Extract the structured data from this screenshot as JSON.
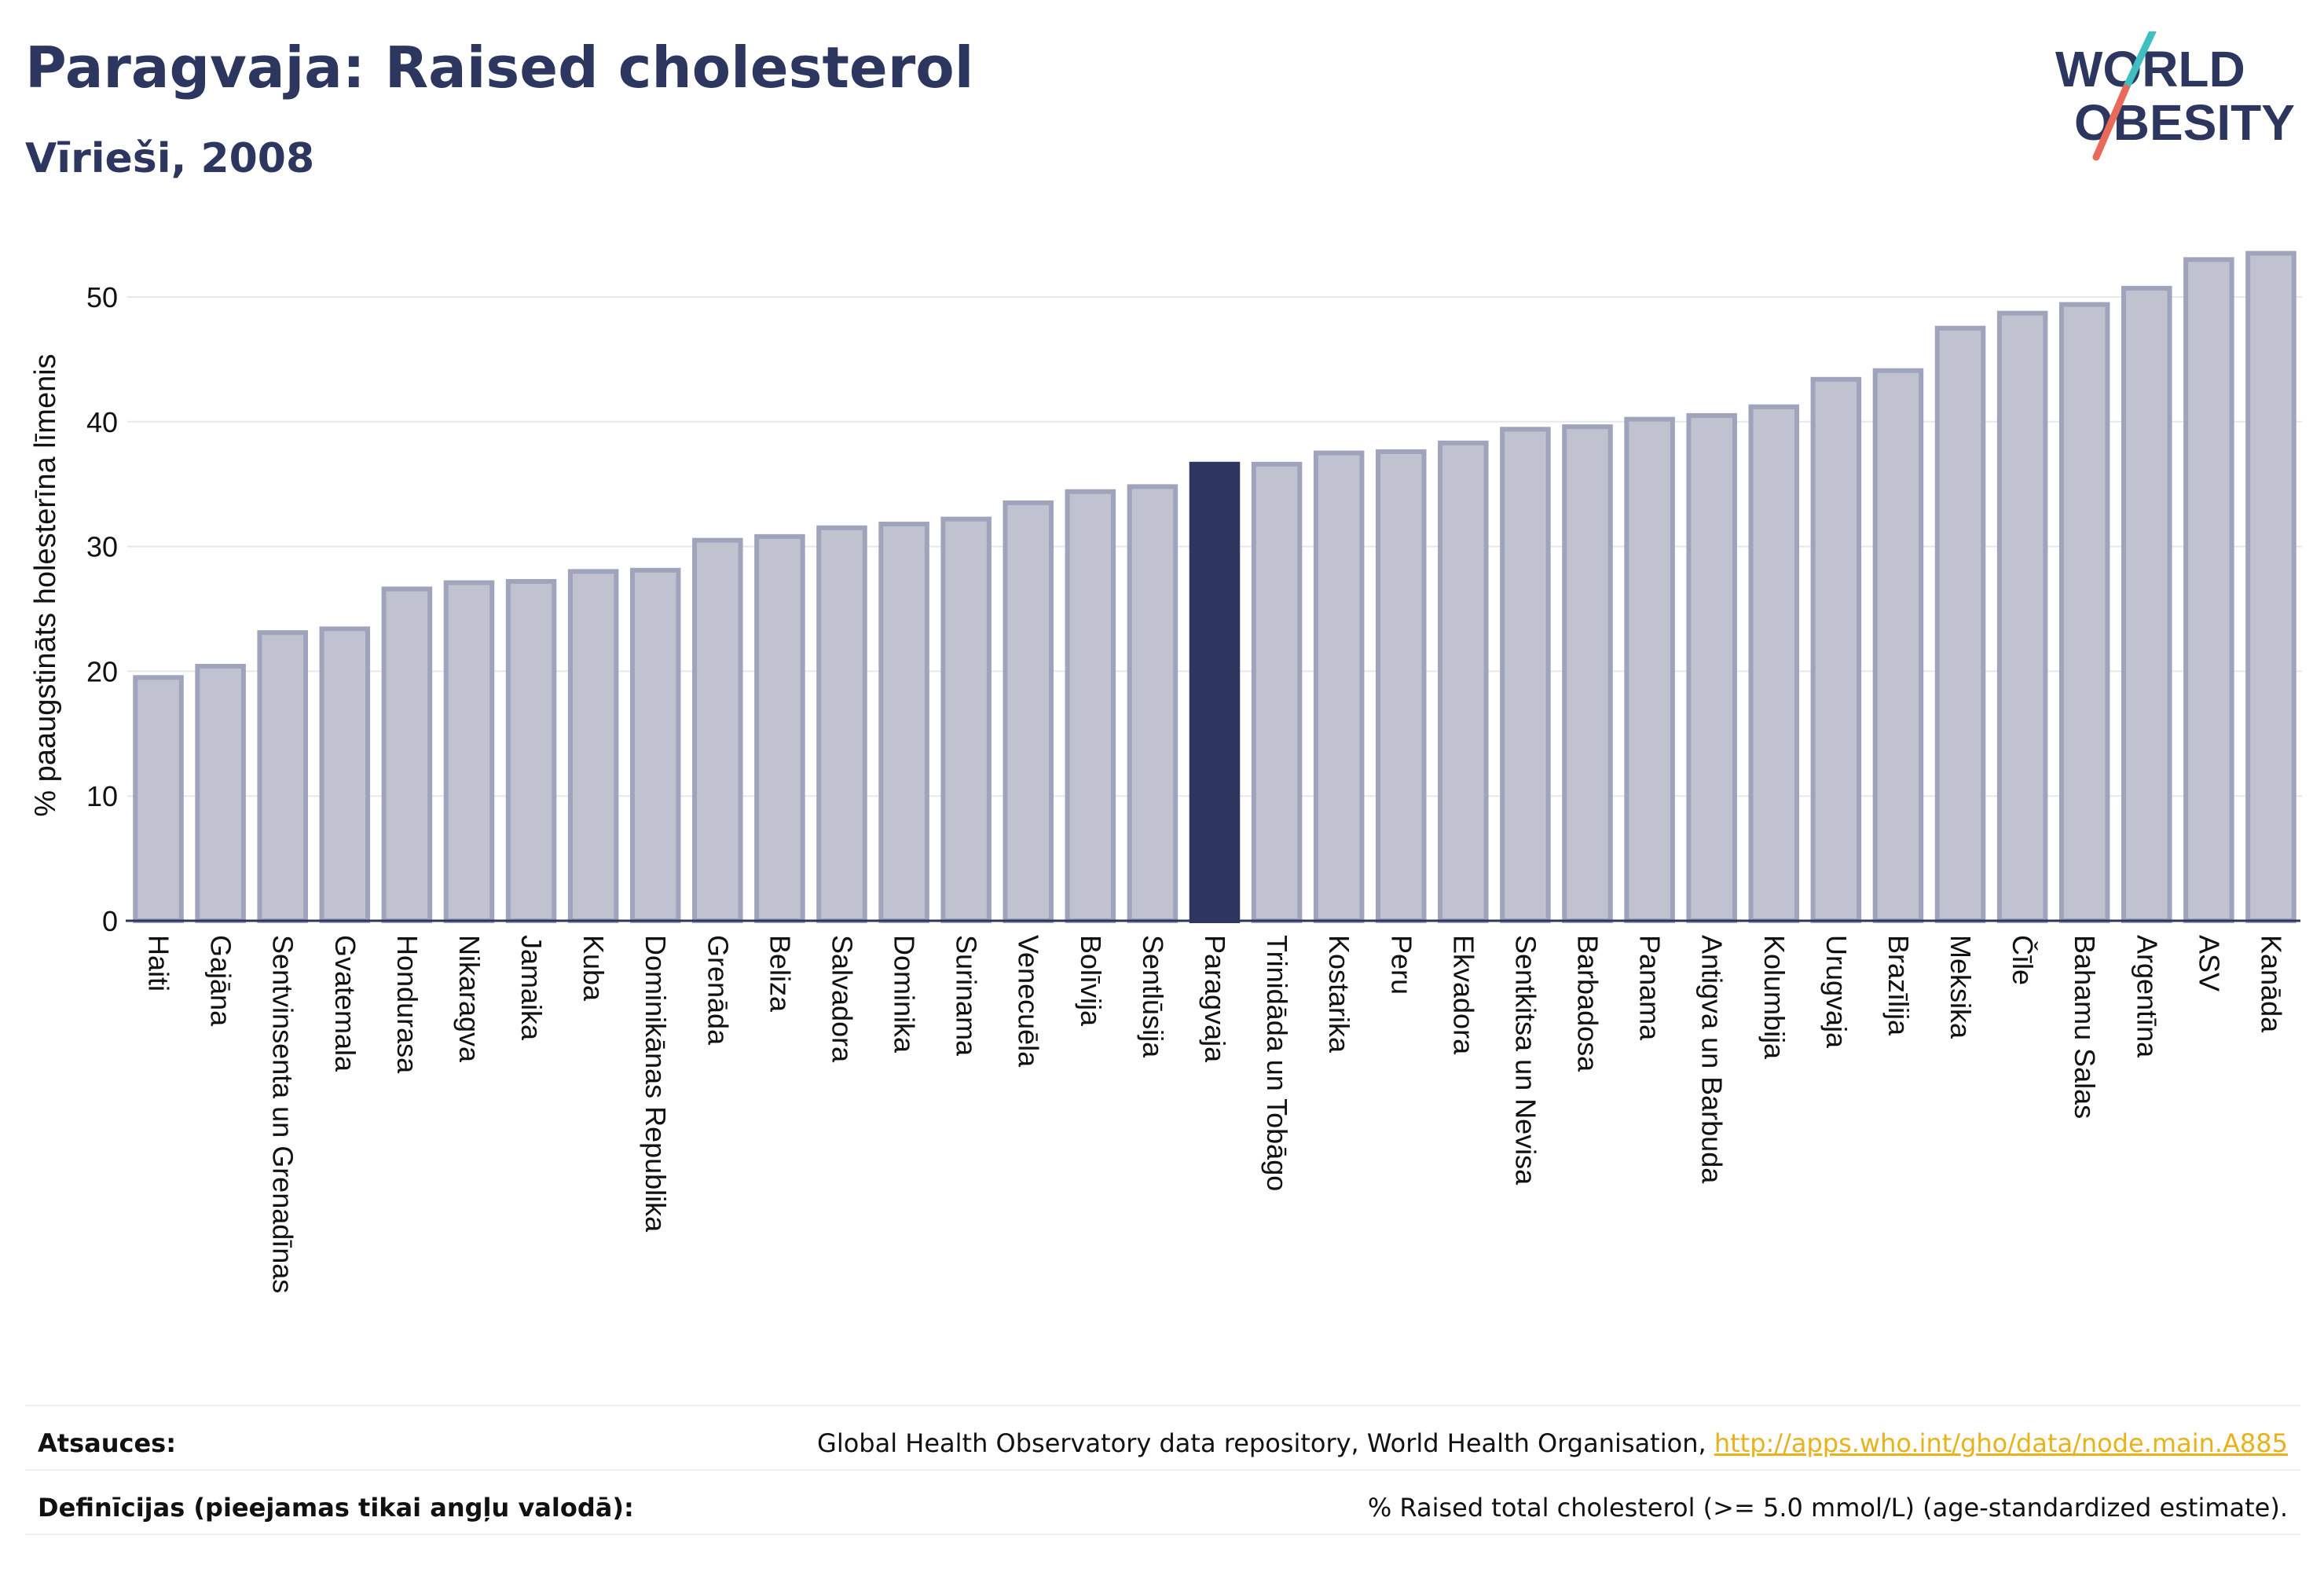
{
  "title": "Paragvaja: Raised cholesterol",
  "subtitle": "Vīrieši, 2008",
  "logo": {
    "line1": "WORLD",
    "line2": "OBESITY",
    "slash_colors": [
      "#3fbfbf",
      "#e86a5a"
    ]
  },
  "footer": {
    "sources_label": "Atsauces:",
    "sources_text": "Global Health Observatory data repository, World Health Organisation, ",
    "sources_link": "http://apps.who.int/gho/data/node.main.A885",
    "definitions_label": "Definīcijas (pieejamas tikai angļu valodā):",
    "definitions_text": "% Raised total cholesterol (>= 5.0 mmol/L) (age-standardized estimate)."
  },
  "colors": {
    "bar_fill": "#c0c3cf",
    "bar_stroke": "#9fa3bb",
    "highlight": "#2c365e",
    "grid": "#e8e8ec",
    "text": "#2c365e"
  },
  "chart_data": {
    "type": "bar",
    "ylabel": "% paaugstināts holesterīna līmenis",
    "ylim": [
      0,
      55
    ],
    "yticks": [
      0,
      10,
      20,
      30,
      40,
      50
    ],
    "grid": true,
    "highlight": "Paragvaja",
    "categories": [
      "Haiti",
      "Gajāna",
      "Sentvinsenta un Grenadīnas",
      "Gvatemala",
      "Hondurasa",
      "Nikaragva",
      "Jamaika",
      "Kuba",
      "Dominikānas Republika",
      "Grenāda",
      "Beliza",
      "Salvadora",
      "Dominika",
      "Surinama",
      "Venecuēla",
      "Bolīvija",
      "Sentlūsija",
      "Paragvaja",
      "Trinidāda un Tobāgo",
      "Kostarika",
      "Peru",
      "Ekvadora",
      "Sentkitsa un Nevisa",
      "Barbadosa",
      "Panama",
      "Antigva un Barbuda",
      "Kolumbija",
      "Urugvaja",
      "Brazīlija",
      "Meksika",
      "Čīle",
      "Bahamu Salas",
      "Argentīna",
      "ASV",
      "Kanāda"
    ],
    "values": [
      19.5,
      20.4,
      23.1,
      23.4,
      26.6,
      27.1,
      27.2,
      28.0,
      28.1,
      30.5,
      30.8,
      31.5,
      31.8,
      32.2,
      33.5,
      34.4,
      34.8,
      36.6,
      36.6,
      37.5,
      37.6,
      38.3,
      39.4,
      39.6,
      40.2,
      40.5,
      41.2,
      43.4,
      44.1,
      47.5,
      48.7,
      49.4,
      50.7,
      53.0,
      53.5
    ]
  }
}
